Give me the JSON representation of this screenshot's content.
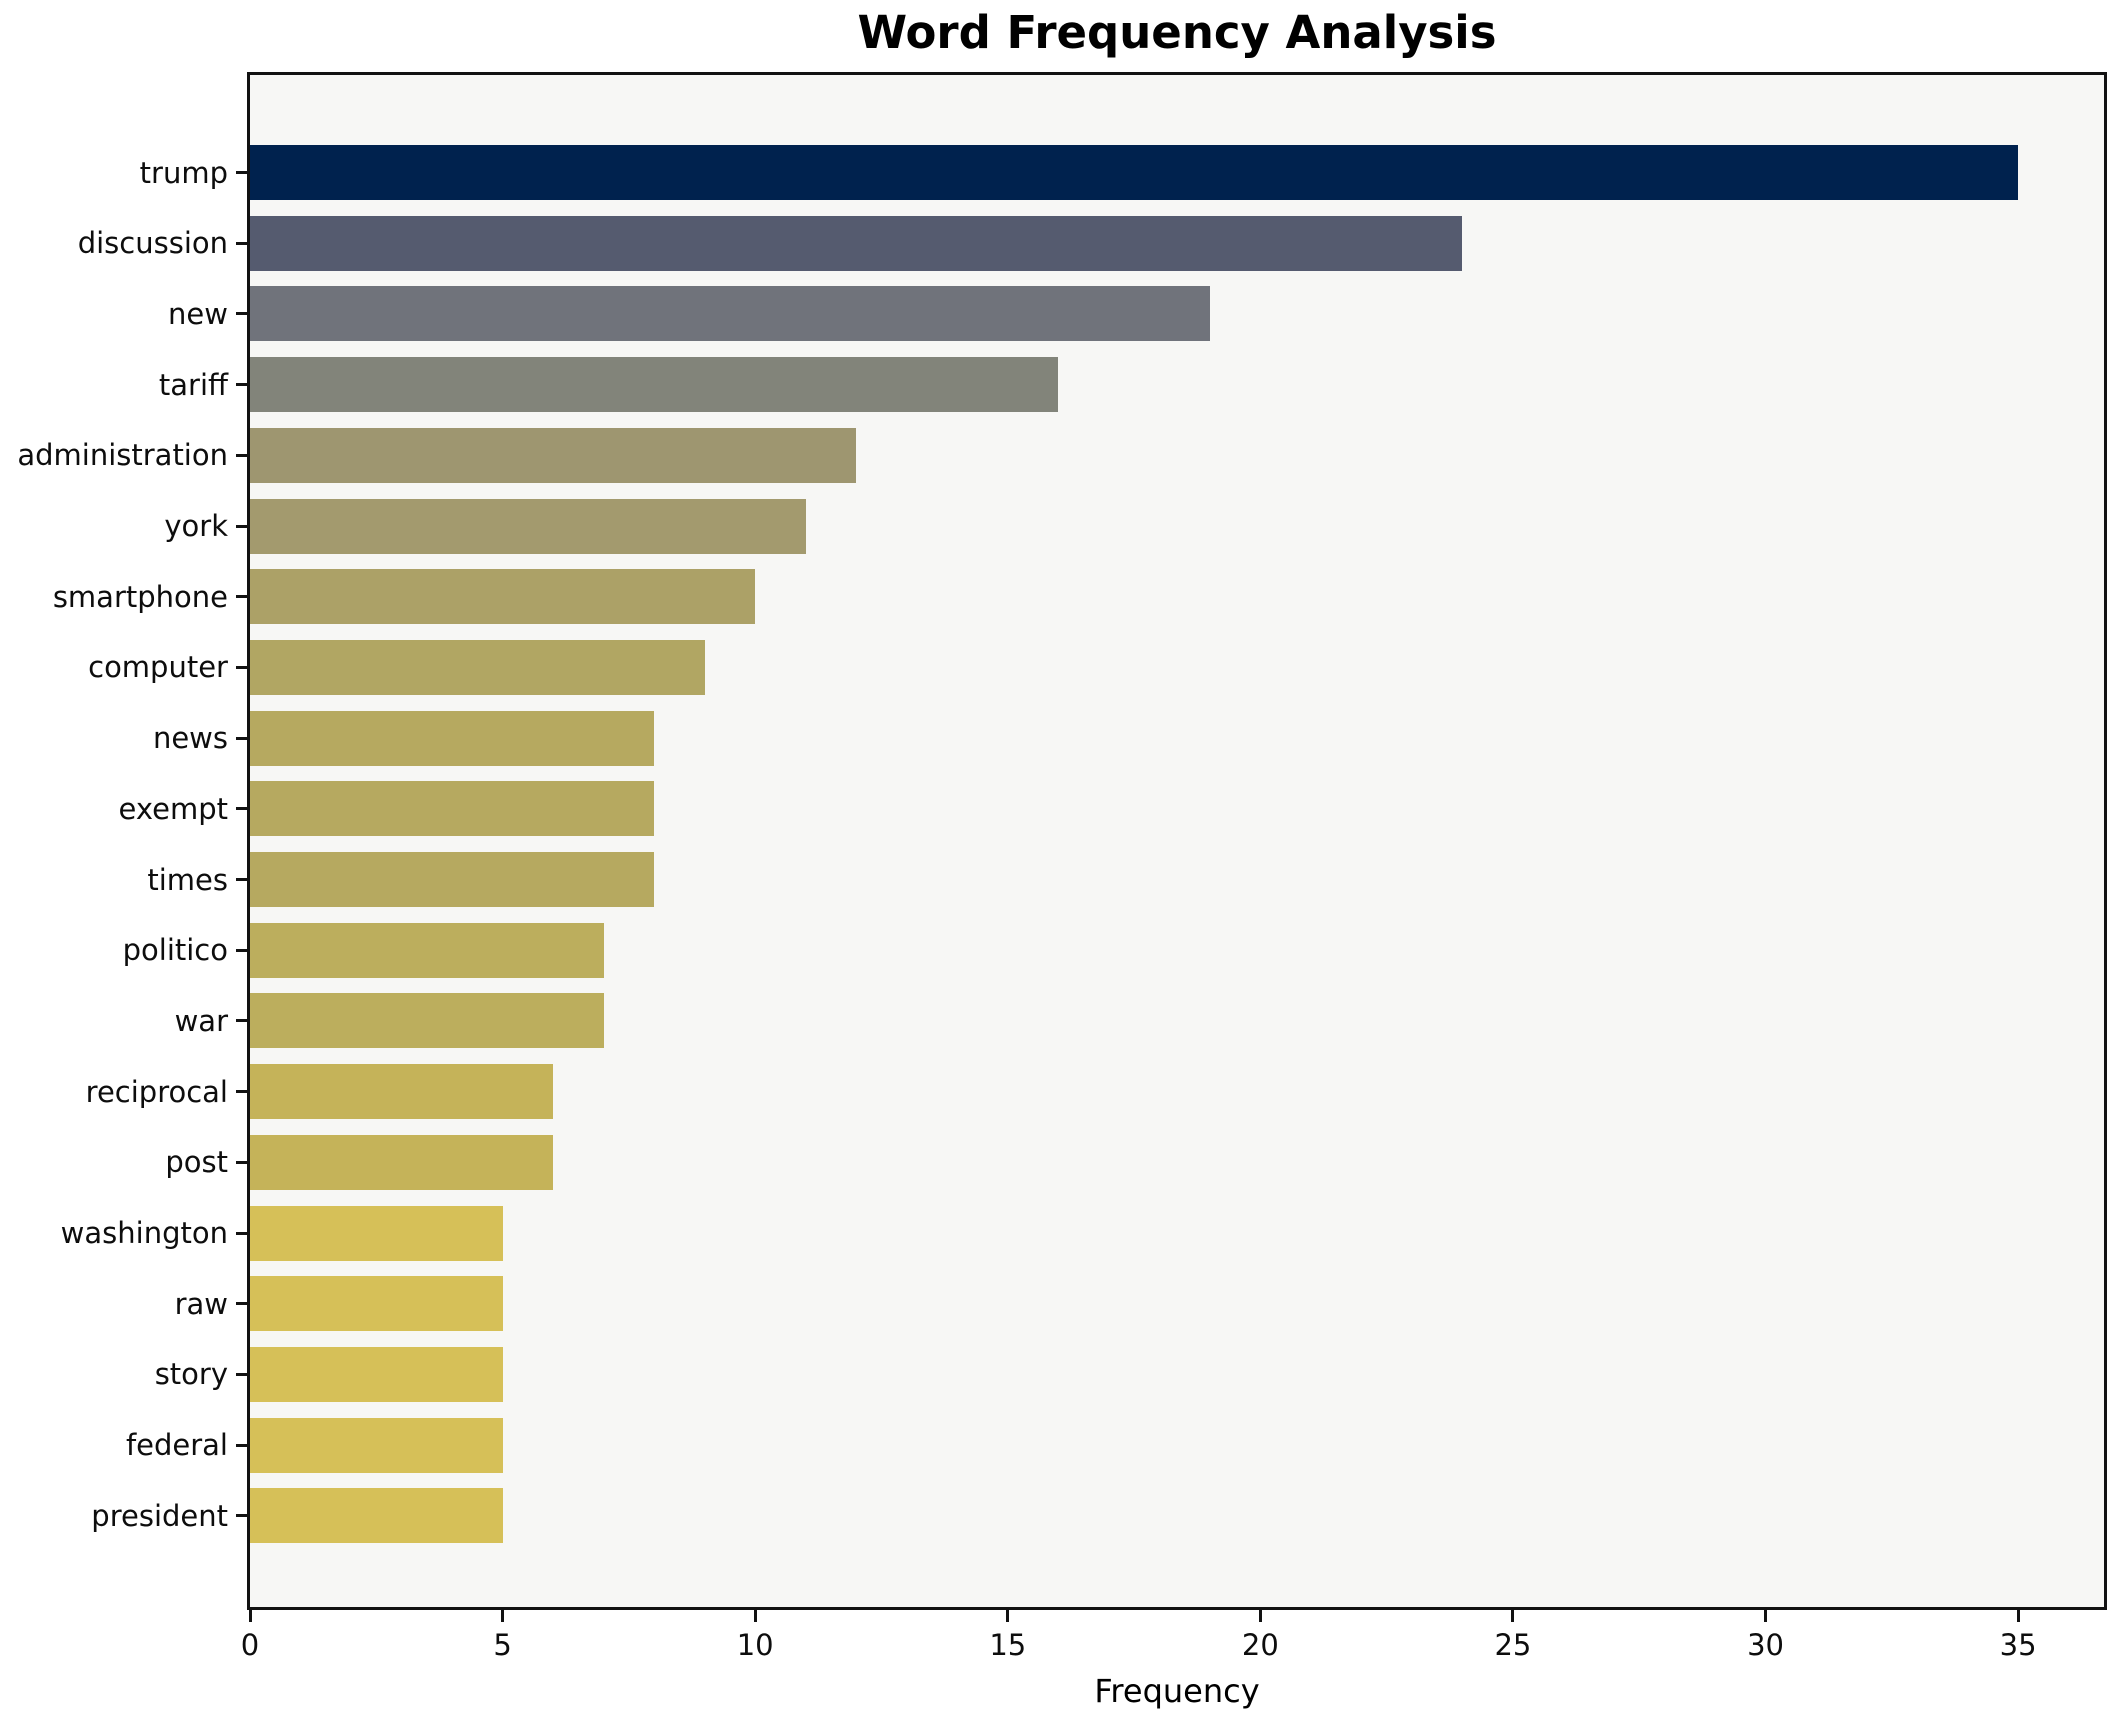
{
  "title": "Word Frequency Analysis",
  "chart_data": {
    "type": "bar",
    "orientation": "horizontal",
    "title": "Word Frequency Analysis",
    "xlabel": "Frequency",
    "ylabel": "",
    "grid": false,
    "legend_position": "none",
    "xlim": [
      0,
      36.7
    ],
    "x_ticks": [
      0,
      5,
      10,
      15,
      20,
      25,
      30,
      35
    ],
    "categories": [
      "trump",
      "discussion",
      "new",
      "tariff",
      "administration",
      "york",
      "smartphone",
      "computer",
      "news",
      "exempt",
      "times",
      "politico",
      "war",
      "reciprocal",
      "post",
      "washington",
      "raw",
      "story",
      "federal",
      "president"
    ],
    "values": [
      35,
      24,
      19,
      16,
      12,
      11,
      10,
      9,
      8,
      8,
      8,
      7,
      7,
      6,
      6,
      5,
      5,
      5,
      5,
      5
    ],
    "bar_colors": [
      "#00224e",
      "#555b6f",
      "#70737b",
      "#82847a",
      "#9e9670",
      "#a39a6e",
      "#aca167",
      "#b1a663",
      "#b6a960",
      "#b6a960",
      "#b6a960",
      "#bcae5d",
      "#bcae5d",
      "#c5b359",
      "#c5b359",
      "#d6c058",
      "#d6c058",
      "#d6c058",
      "#d6c058",
      "#d6c058"
    ]
  },
  "colors": {
    "figure_background": "#ffffff",
    "plot_background": "#f7f7f5",
    "spine": "#121212",
    "text": "#000000"
  }
}
